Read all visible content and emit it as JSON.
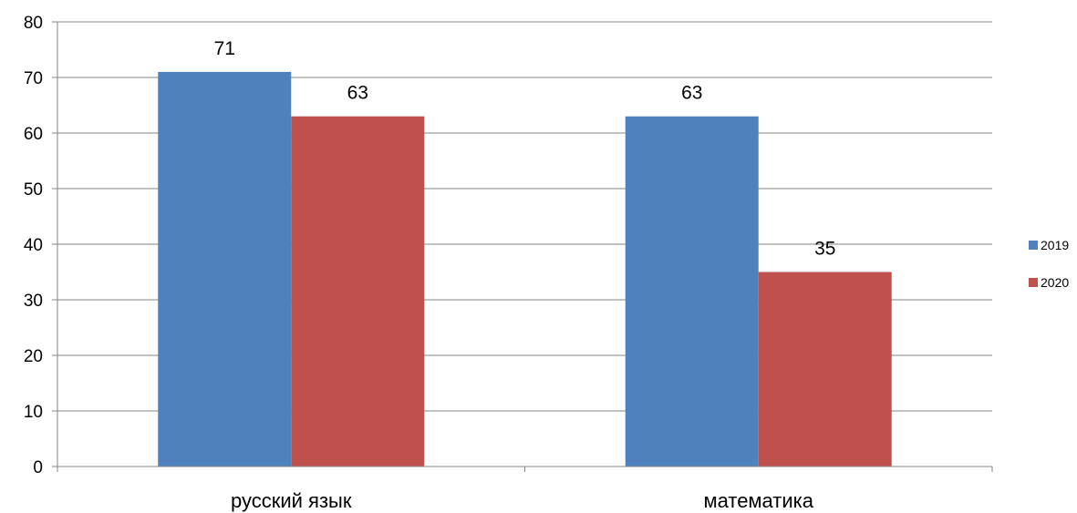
{
  "chart_data": {
    "type": "bar",
    "title": "",
    "xlabel": "",
    "ylabel": "",
    "categories": [
      "русский язык",
      "математика"
    ],
    "series": [
      {
        "name": "2019",
        "color": "#4f81bd",
        "values": [
          71,
          63
        ]
      },
      {
        "name": "2020",
        "color": "#c0504d",
        "values": [
          63,
          35
        ]
      }
    ],
    "ylim": [
      0,
      80
    ],
    "yticks": [
      0,
      10,
      20,
      30,
      40,
      50,
      60,
      70,
      80
    ],
    "grid": true,
    "legend": "right",
    "data_labels": true
  }
}
